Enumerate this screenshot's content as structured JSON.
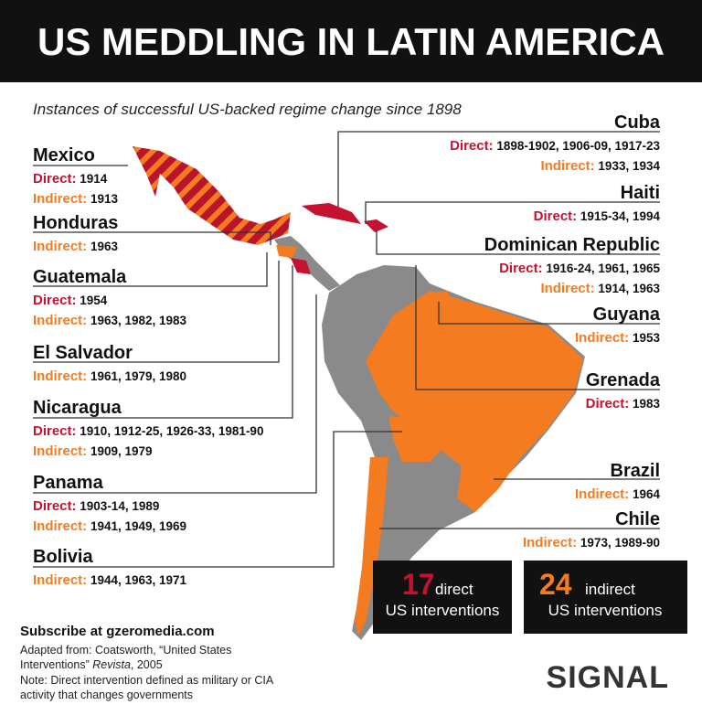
{
  "header": {
    "title": "US MEDDLING IN LATIN AMERICA",
    "subtitle": "Instances of successful US-backed regime change since 1898"
  },
  "labels": {
    "direct": "Direct:",
    "indirect": "Indirect:"
  },
  "countries": [
    {
      "name": "Mexico",
      "direct": "1914",
      "indirect": "1913"
    },
    {
      "name": "Honduras",
      "indirect": "1963"
    },
    {
      "name": "Guatemala",
      "direct": "1954",
      "indirect": "1963, 1982, 1983"
    },
    {
      "name": "El Salvador",
      "indirect": "1961, 1979, 1980"
    },
    {
      "name": "Nicaragua",
      "direct": "1910, 1912-25, 1926-33, 1981-90",
      "indirect": "1909, 1979"
    },
    {
      "name": "Panama",
      "direct": "1903-14, 1989",
      "indirect": "1941, 1949, 1969"
    },
    {
      "name": "Bolivia",
      "indirect": "1944, 1963, 1971"
    },
    {
      "name": "Cuba",
      "direct": "1898-1902, 1906-09, 1917-23",
      "indirect": "1933, 1934"
    },
    {
      "name": "Haiti",
      "direct": "1915-34, 1994"
    },
    {
      "name": "Dominican Republic",
      "direct": "1916-24, 1961, 1965",
      "indirect": "1914, 1963"
    },
    {
      "name": "Guyana",
      "indirect": "1953"
    },
    {
      "name": "Grenada",
      "direct": "1983"
    },
    {
      "name": "Brazil",
      "indirect": "1964"
    },
    {
      "name": "Chile",
      "indirect": "1973, 1989-90"
    }
  ],
  "totals": [
    {
      "number": 17,
      "kind": "direct",
      "text": "US interventions"
    },
    {
      "number": 24,
      "kind": "indirect",
      "text": "US interventions"
    }
  ],
  "footer": {
    "subscribe": "Subscribe at gzeromedia.com",
    "source_1": "Adapted from: Coatsworth, “United States",
    "source_2": "Interventions”",
    "source_3": "Revista",
    "source_4": ", 2005",
    "note_1": "Note: Direct intervention defined as military or CIA",
    "note_2": "activity that changes governments"
  },
  "logo": "SIGNAL"
}
